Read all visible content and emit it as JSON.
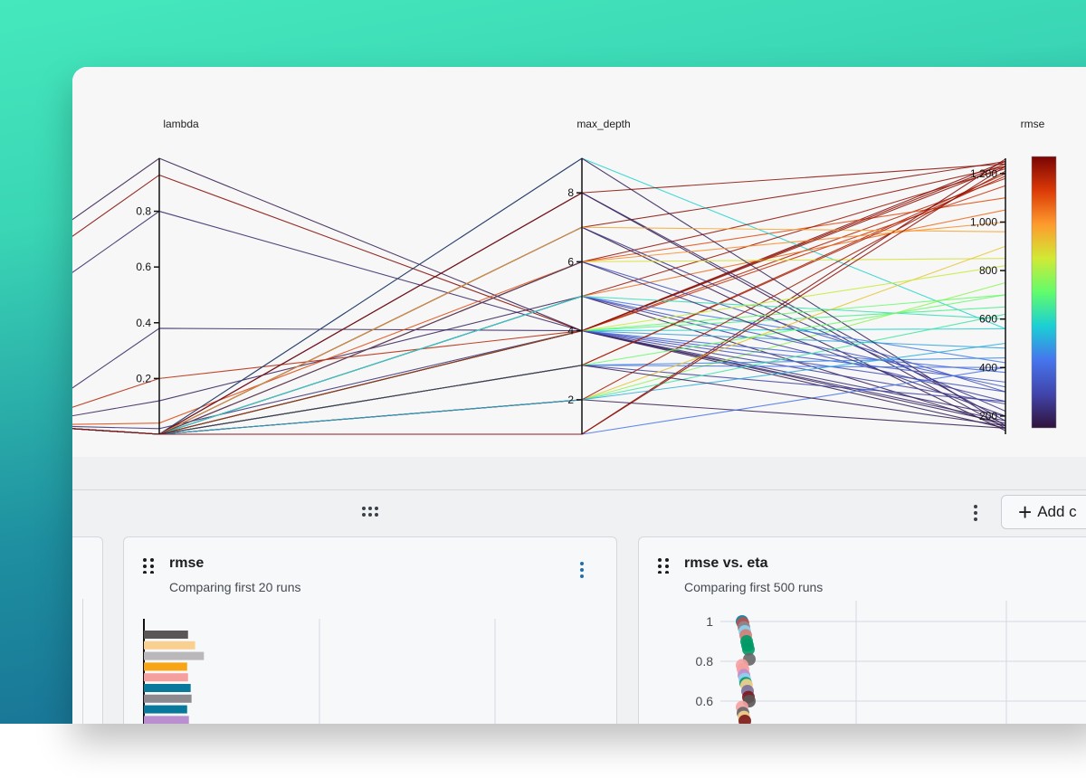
{
  "parallel": {
    "axes": [
      {
        "label": "lambda",
        "ticks": [
          "0.2",
          "0.4",
          "0.6",
          "0.8"
        ],
        "tick_values": [
          0.2,
          0.4,
          0.6,
          0.8
        ],
        "range": [
          0,
          0.99
        ]
      },
      {
        "label": "max_depth",
        "ticks": [
          "2",
          "4",
          "6",
          "8"
        ],
        "tick_values": [
          2,
          4,
          6,
          8
        ],
        "range": [
          1,
          9
        ]
      },
      {
        "label": "rmse",
        "ticks": [
          "200",
          "400",
          "600",
          "800",
          "1,000",
          "1,200"
        ],
        "tick_values": [
          200,
          400,
          600,
          800,
          1000,
          1200
        ],
        "range": [
          125,
          1263
        ]
      }
    ],
    "colorbar": {
      "label": "rmse",
      "colors": [
        "#30123b",
        "#4145ab",
        "#4675ed",
        "#1bcfd4",
        "#61fc6c",
        "#d2e935",
        "#fe9b2d",
        "#db3a07",
        "#7a0403"
      ]
    },
    "runs": [
      [
        0.99,
        4,
        150
      ],
      [
        0.93,
        4,
        1250
      ],
      [
        0.8,
        4,
        180
      ],
      [
        0.38,
        4,
        170
      ],
      [
        0.2,
        4,
        1180
      ],
      [
        0.12,
        5,
        160
      ],
      [
        0.04,
        6,
        1100
      ],
      [
        0.02,
        4,
        200
      ],
      [
        0,
        9,
        560
      ],
      [
        0,
        7,
        1250
      ],
      [
        0,
        6,
        1230
      ],
      [
        0,
        5,
        1220
      ],
      [
        0,
        4,
        1240
      ],
      [
        0,
        3,
        1200
      ],
      [
        0,
        2,
        750
      ],
      [
        0,
        4,
        1150
      ],
      [
        0,
        5,
        1050
      ],
      [
        0,
        1,
        1260
      ],
      [
        0,
        8,
        150
      ],
      [
        0,
        8,
        180
      ],
      [
        0,
        7,
        140
      ],
      [
        0,
        7,
        220
      ],
      [
        0,
        6,
        300
      ],
      [
        0,
        6,
        850
      ],
      [
        0,
        5,
        260
      ],
      [
        0,
        5,
        320
      ],
      [
        0,
        5,
        420
      ],
      [
        0,
        4,
        480
      ],
      [
        0,
        4,
        560
      ],
      [
        0,
        4,
        650
      ],
      [
        0,
        4,
        700
      ],
      [
        0,
        4,
        380
      ],
      [
        0,
        4,
        250
      ],
      [
        0,
        4,
        300
      ],
      [
        0,
        4,
        340
      ],
      [
        0,
        3,
        400
      ],
      [
        0,
        3,
        440
      ],
      [
        0,
        3,
        260
      ],
      [
        0,
        2,
        900
      ],
      [
        0,
        2,
        620
      ],
      [
        0,
        2,
        1210
      ],
      [
        0,
        2,
        150
      ],
      [
        0,
        1,
        400
      ],
      [
        0,
        9,
        160
      ],
      [
        0,
        8,
        1240
      ],
      [
        0,
        7,
        960
      ],
      [
        0,
        6,
        1000
      ],
      [
        0,
        3,
        1190
      ],
      [
        0,
        5,
        600
      ],
      [
        0,
        4,
        820
      ],
      [
        0,
        3,
        700
      ],
      [
        0,
        2,
        500
      ],
      [
        0,
        6,
        200
      ],
      [
        0,
        4,
        1230
      ],
      [
        0,
        3,
        160
      ],
      [
        0,
        1,
        1230
      ]
    ]
  },
  "toolbar": {
    "add_label": "Add c",
    "kebab": "more-vertical-icon",
    "drag": "drag-handle-icon"
  },
  "cards": [
    {
      "title": "rmse",
      "subtitle": "Comparing first 20 runs"
    },
    {
      "title": "rmse vs. eta",
      "subtitle": "Comparing first 500 runs"
    }
  ],
  "chart_data": [
    {
      "type": "bar",
      "orientation": "horizontal",
      "title": "rmse",
      "subtitle": "Comparing first 20 runs",
      "values": [
        250,
        290,
        340,
        245,
        250,
        265,
        270,
        245,
        255
      ],
      "colors": [
        "#5a5557",
        "#f9d08f",
        "#bab8bb",
        "#f8a515",
        "#f5a09e",
        "#08799a",
        "#8c8a8f",
        "#08799a",
        "#b98fcf"
      ]
    },
    {
      "type": "scatter",
      "title": "rmse vs. eta",
      "subtitle": "Comparing first 500 runs",
      "ylabel": "eta",
      "yticks": [
        "0.6",
        "0.8",
        "1"
      ],
      "ytick_values": [
        0.6,
        0.8,
        1
      ],
      "points": [
        {
          "eta": 1.0,
          "color": "#0b7a9a"
        },
        {
          "eta": 0.99,
          "color": "#c0504d"
        },
        {
          "eta": 0.97,
          "color": "#8c8a8f"
        },
        {
          "eta": 0.95,
          "color": "#8dd3f0"
        },
        {
          "eta": 0.93,
          "color": "#d08077"
        },
        {
          "eta": 0.9,
          "color": "#009966"
        },
        {
          "eta": 0.88,
          "color": "#009966"
        },
        {
          "eta": 0.86,
          "color": "#009966"
        },
        {
          "eta": 0.81,
          "color": "#666666"
        },
        {
          "eta": 0.78,
          "color": "#f5a09e"
        },
        {
          "eta": 0.76,
          "color": "#f5a09e"
        },
        {
          "eta": 0.73,
          "color": "#b98fcf"
        },
        {
          "eta": 0.71,
          "color": "#8dd3f0"
        },
        {
          "eta": 0.69,
          "color": "#009966"
        },
        {
          "eta": 0.68,
          "color": "#f9d08f"
        },
        {
          "eta": 0.65,
          "color": "#7a6fa0"
        },
        {
          "eta": 0.62,
          "color": "#7a1a1a"
        },
        {
          "eta": 0.6,
          "color": "#5a5557"
        },
        {
          "eta": 0.57,
          "color": "#f5a09e"
        },
        {
          "eta": 0.54,
          "color": "#666666"
        },
        {
          "eta": 0.52,
          "color": "#f9d08f"
        },
        {
          "eta": 0.5,
          "color": "#7a1a1a"
        }
      ]
    }
  ]
}
